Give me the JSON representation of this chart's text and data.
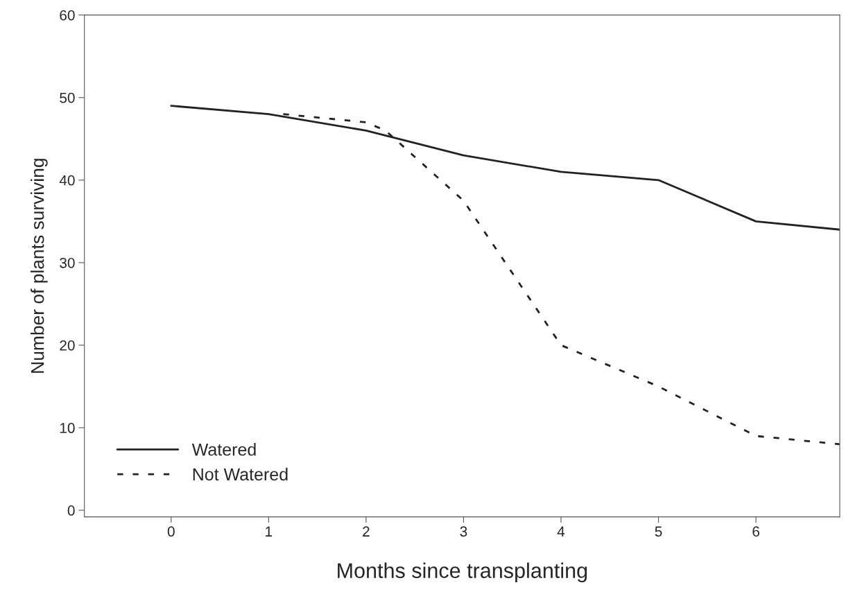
{
  "chart_data": {
    "type": "line",
    "xlabel": "Months since transplanting",
    "ylabel": "Number of plants surviving",
    "xlim": [
      -0.89,
      6.86
    ],
    "xticks": [
      0,
      1,
      2,
      3,
      4,
      5,
      6
    ],
    "ylim": [
      -0.8,
      60
    ],
    "yticks": [
      0,
      10,
      20,
      30,
      40,
      50,
      60
    ],
    "grid": false,
    "legend": "bottom left",
    "marker": "none",
    "series": [
      {
        "name": "Watered",
        "color": "#222222",
        "line_style": "solid",
        "x": [
          0,
          1,
          2,
          3,
          4,
          5,
          6,
          6.86
        ],
        "values": [
          49,
          48,
          46,
          43,
          41,
          40,
          35,
          34
        ]
      },
      {
        "name": "Not Watered",
        "color": "#222222",
        "line_style": "dashed",
        "x": [
          1.15,
          2,
          2.2,
          3,
          4,
          5,
          6,
          6.86
        ],
        "values": [
          48,
          47,
          46,
          37.5,
          20,
          15,
          9,
          8
        ]
      }
    ]
  }
}
